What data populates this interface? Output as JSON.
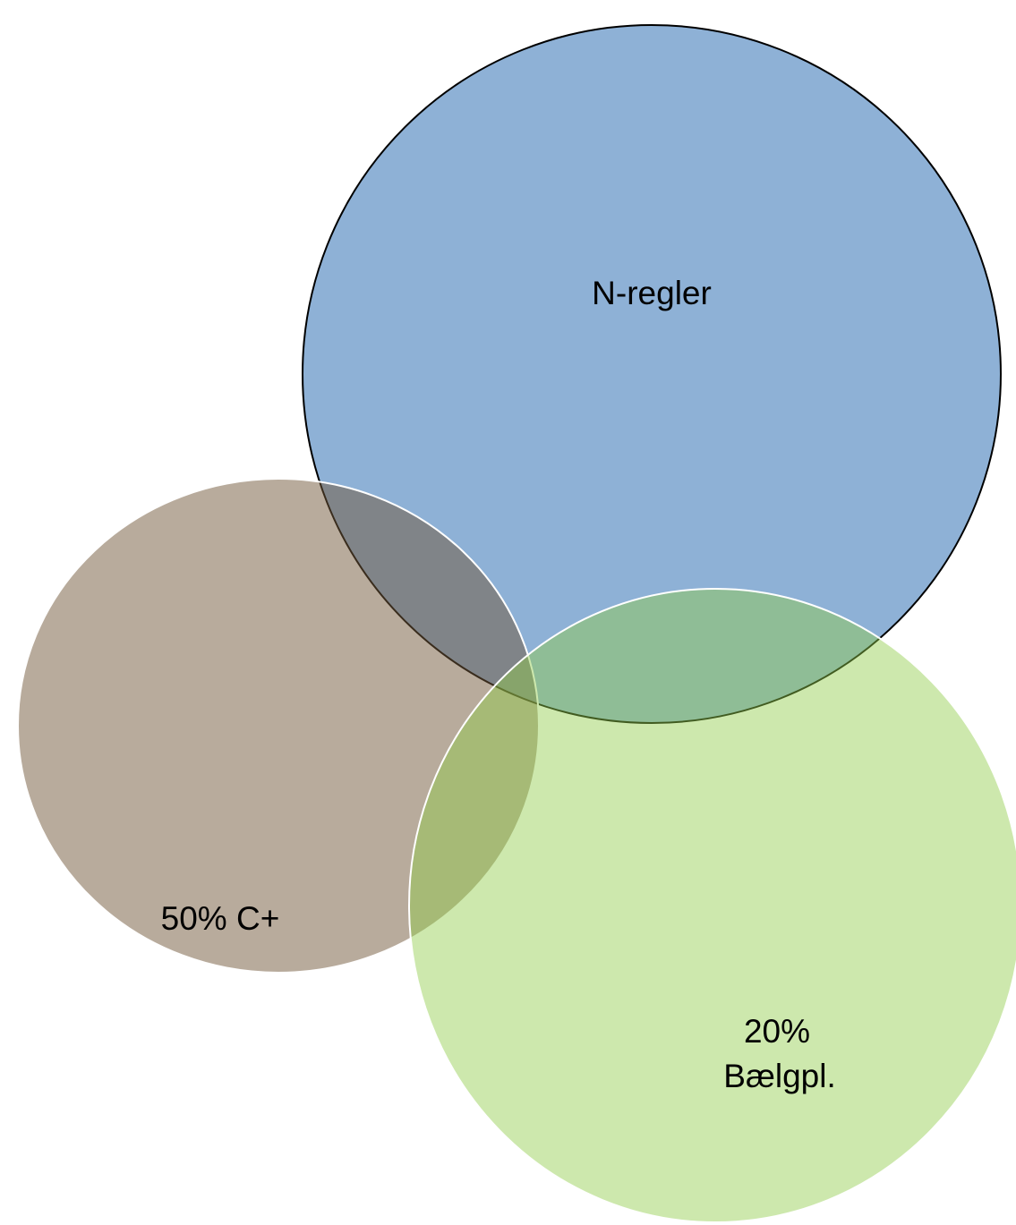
{
  "nodes": [
    {
      "label": "N-regler"
    },
    {
      "label": "50% C+"
    },
    {
      "lines": [
        "20%",
        "Bælgpl."
      ]
    }
  ]
}
